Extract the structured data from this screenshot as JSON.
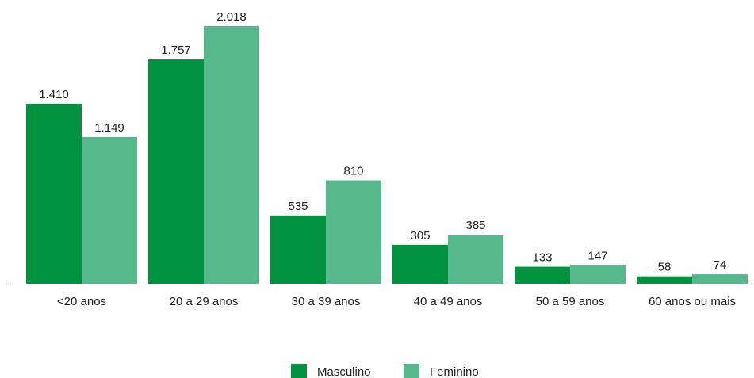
{
  "chart_data": {
    "type": "bar",
    "categories": [
      "<20 anos",
      "20 a 29 anos",
      "30 a 39 anos",
      "40 a 49 anos",
      "50 a 59 anos",
      "60 anos ou mais"
    ],
    "series": [
      {
        "name": "Masculino",
        "color": "#00923f",
        "values": [
          1410,
          1757,
          535,
          305,
          133,
          58
        ],
        "value_labels": [
          "1.410",
          "1.757",
          "535",
          "305",
          "133",
          "58"
        ]
      },
      {
        "name": "Feminino",
        "color": "#55b98c",
        "values": [
          1149,
          2018,
          810,
          385,
          147,
          74
        ],
        "value_labels": [
          "1.149",
          "2.018",
          "810",
          "385",
          "147",
          "74"
        ]
      }
    ]
  }
}
